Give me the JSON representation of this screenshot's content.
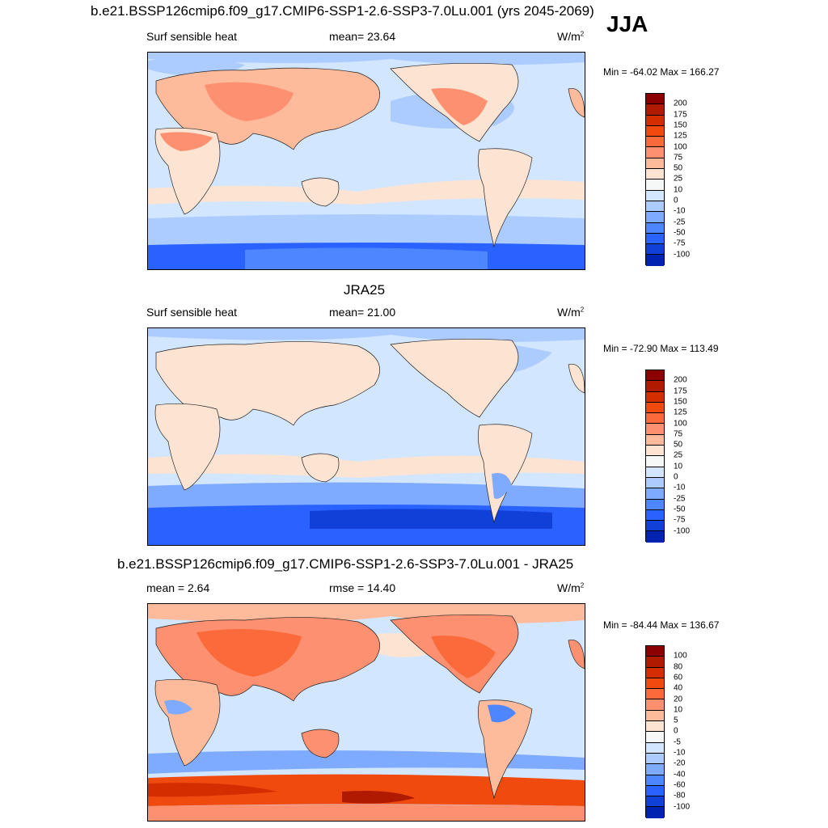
{
  "season": "JJA",
  "colorbar_main": {
    "labels": [
      "200",
      "175",
      "150",
      "125",
      "100",
      "75",
      "50",
      "25",
      "10",
      "0",
      "-10",
      "-25",
      "-50",
      "-75",
      "-100"
    ],
    "colors": [
      "#8b0000",
      "#b01a00",
      "#d42d00",
      "#f04a0f",
      "#fb6a3b",
      "#fc9070",
      "#fdbb9c",
      "#fde3d2",
      "#f6f7f7",
      "#d3e6ff",
      "#acccff",
      "#7eaaff",
      "#4d86ff",
      "#2962ff",
      "#1140d8",
      "#0022b0"
    ]
  },
  "colorbar_diff": {
    "labels": [
      "100",
      "80",
      "60",
      "40",
      "20",
      "10",
      "5",
      "0",
      "-5",
      "-10",
      "-20",
      "-40",
      "-60",
      "-80",
      "-100"
    ],
    "colors": [
      "#8b0000",
      "#b01a00",
      "#d42d00",
      "#f04a0f",
      "#fb6a3b",
      "#fc9070",
      "#fdbb9c",
      "#fde3d2",
      "#f6f7f7",
      "#d3e6ff",
      "#acccff",
      "#7eaaff",
      "#4d86ff",
      "#2962ff",
      "#1140d8",
      "#0022b0"
    ]
  },
  "panels": [
    {
      "title": "b.e21.BSSP126cmip6.f09_g17.CMIP6-SSP1-2.6-SSP3-7.0Lu.001 (yrs 2045-2069)",
      "left_label": "Surf sensible heat",
      "center_label": "mean=  23.64",
      "units": "W/m",
      "units_sup": "2",
      "minmax": "Min = -64.02 Max = 166.27"
    },
    {
      "title": "JRA25",
      "left_label": "Surf sensible heat",
      "center_label": "mean=  21.00",
      "units": "W/m",
      "units_sup": "2",
      "minmax": "Min = -72.90 Max = 113.49"
    },
    {
      "title": "b.e21.BSSP126cmip6.f09_g17.CMIP6-SSP1-2.6-SSP3-7.0Lu.001 - JRA25",
      "left_label": "mean =   2.64",
      "center_label": "rmse =  14.40",
      "units": "W/m",
      "units_sup": "2",
      "minmax": "Min = -84.44 Max = 136.67"
    }
  ]
}
